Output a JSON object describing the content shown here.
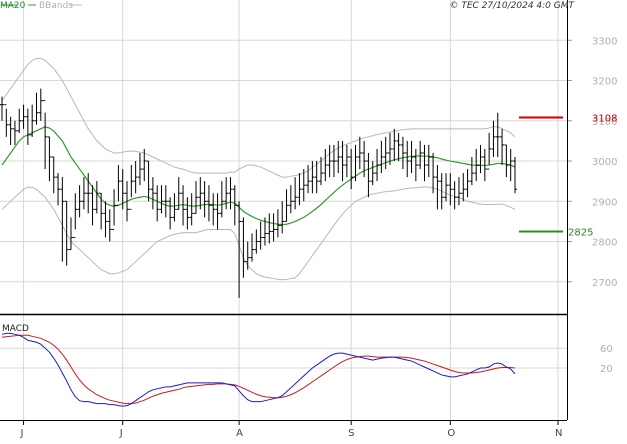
{
  "legend": {
    "ma_label": "MA20",
    "bb_label": "BBands"
  },
  "copyright": "© TEC 27/10/2024 4:0 GMT",
  "macd_label": "MACD",
  "levels": {
    "resistance": {
      "value": 3108,
      "label": "3108",
      "color": "#cc0000"
    },
    "support": {
      "value": 2825,
      "label": "2825",
      "color": "#2a8a2a"
    }
  },
  "colors": {
    "price_bars": "#000000",
    "ma20": "#2e9e2e",
    "bbands": "#b8b8b8",
    "macd_line": "#1a1acc",
    "signal_line": "#cc1a1a",
    "grid": "#d8d8d8"
  },
  "chart_data": [
    {
      "type": "ohlc",
      "panel": "price",
      "y_ticks": [
        2700,
        2800,
        2900,
        3000,
        3100,
        3200,
        3300
      ],
      "y_tick_labels": [
        "2700",
        "2800",
        "2900",
        "3000",
        "3100",
        "3200",
        "3300"
      ],
      "ylim": [
        2620,
        3400
      ],
      "x_month_labels": [
        "J",
        "J",
        "A",
        "S",
        "O",
        "N"
      ],
      "month_start_index": [
        5,
        28,
        55,
        81,
        104,
        137
      ],
      "close": [
        3140,
        3090,
        3080,
        3075,
        3100,
        3110,
        3065,
        3100,
        3120,
        3150,
        3060,
        3010,
        2960,
        2930,
        2900,
        2780,
        2810,
        2880,
        2900,
        2920,
        2920,
        2880,
        2920,
        2870,
        2850,
        2830,
        2890,
        2950,
        2920,
        2880,
        2950,
        2960,
        2980,
        3000,
        2930,
        2920,
        2880,
        2900,
        2900,
        2860,
        2880,
        2920,
        2880,
        2860,
        2870,
        2910,
        2920,
        2900,
        2890,
        2880,
        2870,
        2900,
        2920,
        2930,
        2890,
        2850,
        2750,
        2760,
        2780,
        2800,
        2810,
        2820,
        2825,
        2830,
        2840,
        2850,
        2890,
        2900,
        2910,
        2930,
        2940,
        2950,
        2960,
        2950,
        2970,
        2990,
        3000,
        3000,
        3010,
        2990,
        3010,
        2960,
        3010,
        3020,
        3000,
        2950,
        2970,
        2990,
        3010,
        3020,
        3030,
        3050,
        3040,
        3020,
        3000,
        3010,
        2990,
        3020,
        2990,
        3010,
        2960,
        2950,
        2910,
        2940,
        2930,
        2910,
        2920,
        2930,
        2950,
        2970,
        2990,
        3010,
        2980,
        3030,
        3060,
        3060,
        3040,
        2990,
        3000,
        2930
      ],
      "high": [
        3160,
        3130,
        3110,
        3100,
        3130,
        3140,
        3130,
        3140,
        3170,
        3180,
        3120,
        3060,
        3010,
        2970,
        2960,
        2900,
        2860,
        2920,
        2940,
        2960,
        2970,
        2940,
        2950,
        2920,
        2900,
        2880,
        2930,
        2990,
        2980,
        2950,
        2990,
        3000,
        3020,
        3030,
        3000,
        2960,
        2940,
        2940,
        2940,
        2910,
        2920,
        2960,
        2940,
        2910,
        2920,
        2950,
        2960,
        2950,
        2940,
        2920,
        2920,
        2950,
        2960,
        2960,
        2940,
        2900,
        2860,
        2800,
        2820,
        2830,
        2850,
        2860,
        2870,
        2870,
        2880,
        2900,
        2930,
        2940,
        2960,
        2970,
        2980,
        2990,
        3000,
        3000,
        3010,
        3030,
        3040,
        3040,
        3050,
        3050,
        3040,
        3030,
        3040,
        3060,
        3050,
        3020,
        3000,
        3030,
        3050,
        3060,
        3070,
        3080,
        3070,
        3060,
        3050,
        3050,
        3030,
        3050,
        3040,
        3040,
        3020,
        2990,
        2970,
        2970,
        2970,
        2950,
        2960,
        2970,
        2980,
        3010,
        3030,
        3040,
        3030,
        3070,
        3100,
        3120,
        3080,
        3040,
        3030,
        3010
      ],
      "low": [
        3100,
        3060,
        3040,
        3040,
        3070,
        3080,
        3040,
        3060,
        3090,
        3100,
        2980,
        2950,
        2920,
        2890,
        2750,
        2740,
        2780,
        2830,
        2860,
        2880,
        2870,
        2840,
        2870,
        2830,
        2810,
        2800,
        2840,
        2900,
        2880,
        2850,
        2910,
        2920,
        2940,
        2950,
        2900,
        2880,
        2850,
        2870,
        2860,
        2830,
        2850,
        2880,
        2840,
        2830,
        2840,
        2870,
        2880,
        2860,
        2850,
        2840,
        2830,
        2860,
        2880,
        2880,
        2840,
        2660,
        2710,
        2730,
        2750,
        2770,
        2780,
        2790,
        2795,
        2800,
        2810,
        2820,
        2850,
        2870,
        2880,
        2890,
        2900,
        2920,
        2920,
        2920,
        2940,
        2950,
        2960,
        2960,
        2970,
        2950,
        2960,
        2930,
        2950,
        2980,
        2960,
        2910,
        2940,
        2950,
        2970,
        2980,
        2990,
        3000,
        3000,
        2980,
        2960,
        2970,
        2950,
        2980,
        2950,
        2960,
        2920,
        2880,
        2880,
        2900,
        2890,
        2880,
        2890,
        2900,
        2910,
        2940,
        2950,
        2970,
        2950,
        2990,
        3010,
        3010,
        2990,
        2960,
        2950,
        2920
      ],
      "ma20": [
        2990,
        3005,
        3020,
        3035,
        3050,
        3060,
        3065,
        3070,
        3075,
        3080,
        3085,
        3082,
        3075,
        3062,
        3050,
        3030,
        3010,
        2995,
        2980,
        2965,
        2950,
        2935,
        2920,
        2905,
        2895,
        2890,
        2888,
        2890,
        2895,
        2900,
        2905,
        2908,
        2910,
        2912,
        2910,
        2905,
        2900,
        2895,
        2890,
        2888,
        2888,
        2890,
        2892,
        2890,
        2888,
        2888,
        2890,
        2892,
        2892,
        2892,
        2890,
        2892,
        2895,
        2898,
        2895,
        2885,
        2875,
        2868,
        2862,
        2857,
        2853,
        2850,
        2847,
        2845,
        2843,
        2842,
        2843,
        2846,
        2850,
        2855,
        2860,
        2867,
        2875,
        2883,
        2892,
        2902,
        2912,
        2922,
        2932,
        2940,
        2948,
        2955,
        2962,
        2970,
        2976,
        2980,
        2984,
        2988,
        2992,
        2996,
        3000,
        3003,
        3006,
        3008,
        3010,
        3012,
        3012,
        3013,
        3012,
        3012,
        3010,
        3008,
        3005,
        3002,
        3000,
        2998,
        2996,
        2994,
        2992,
        2990,
        2989,
        2989,
        2989,
        2990,
        2992,
        2994,
        2994,
        2992,
        2990,
        2985
      ],
      "bb_upper": [
        3150,
        3165,
        3180,
        3195,
        3210,
        3225,
        3240,
        3250,
        3255,
        3255,
        3250,
        3240,
        3230,
        3215,
        3200,
        3180,
        3160,
        3140,
        3120,
        3100,
        3080,
        3065,
        3050,
        3040,
        3030,
        3025,
        3020,
        3020,
        3022,
        3024,
        3025,
        3024,
        3022,
        3020,
        3015,
        3010,
        3005,
        3000,
        2995,
        2990,
        2985,
        2982,
        2980,
        2976,
        2972,
        2970,
        2970,
        2970,
        2970,
        2970,
        2970,
        2970,
        2970,
        2972,
        2972,
        2980,
        2985,
        2990,
        2990,
        2988,
        2985,
        2980,
        2975,
        2970,
        2965,
        2960,
        2960,
        2962,
        2964,
        2966,
        2970,
        2976,
        2984,
        2992,
        3000,
        3010,
        3018,
        3026,
        3032,
        3038,
        3042,
        3046,
        3050,
        3054,
        3058,
        3060,
        3063,
        3066,
        3068,
        3070,
        3072,
        3074,
        3076,
        3078,
        3079,
        3080,
        3080,
        3080,
        3080,
        3080,
        3080,
        3080,
        3080,
        3080,
        3080,
        3080,
        3080,
        3080,
        3080,
        3080,
        3080,
        3080,
        3080,
        3082,
        3085,
        3085,
        3080,
        3075,
        3070,
        3060
      ],
      "bb_lower": [
        2880,
        2890,
        2900,
        2910,
        2920,
        2930,
        2935,
        2935,
        2930,
        2920,
        2910,
        2895,
        2880,
        2860,
        2840,
        2820,
        2800,
        2790,
        2780,
        2770,
        2760,
        2750,
        2740,
        2730,
        2725,
        2720,
        2720,
        2722,
        2726,
        2730,
        2740,
        2750,
        2760,
        2770,
        2780,
        2790,
        2800,
        2805,
        2810,
        2815,
        2818,
        2820,
        2822,
        2822,
        2822,
        2822,
        2825,
        2828,
        2830,
        2830,
        2830,
        2830,
        2830,
        2830,
        2820,
        2790,
        2760,
        2740,
        2730,
        2720,
        2715,
        2712,
        2710,
        2708,
        2706,
        2705,
        2706,
        2708,
        2710,
        2720,
        2735,
        2750,
        2765,
        2780,
        2795,
        2810,
        2825,
        2840,
        2855,
        2868,
        2880,
        2890,
        2900,
        2905,
        2910,
        2915,
        2918,
        2920,
        2922,
        2924,
        2925,
        2926,
        2928,
        2930,
        2932,
        2933,
        2934,
        2935,
        2936,
        2935,
        2933,
        2930,
        2925,
        2920,
        2915,
        2912,
        2910,
        2905,
        2900,
        2898,
        2895,
        2893,
        2892,
        2892,
        2892,
        2893,
        2893,
        2890,
        2885,
        2880
      ]
    },
    {
      "type": "line",
      "panel": "macd",
      "title": "MACD",
      "y_ticks": [
        20,
        60
      ],
      "y_tick_labels": [
        "20",
        "60"
      ],
      "ylim": [
        -85,
        125
      ],
      "series": [
        {
          "name": "MACD",
          "values": [
            88,
            90,
            90,
            88,
            86,
            82,
            76,
            74,
            72,
            68,
            60,
            52,
            40,
            26,
            10,
            -6,
            -24,
            -38,
            -46,
            -48,
            -48,
            -50,
            -52,
            -52,
            -52,
            -54,
            -54,
            -56,
            -57,
            -56,
            -52,
            -46,
            -40,
            -34,
            -28,
            -24,
            -22,
            -20,
            -18,
            -18,
            -16,
            -14,
            -12,
            -10,
            -10,
            -10,
            -10,
            -10,
            -10,
            -10,
            -10,
            -10,
            -12,
            -14,
            -16,
            -26,
            -36,
            -44,
            -48,
            -48,
            -48,
            -46,
            -44,
            -42,
            -40,
            -36,
            -28,
            -20,
            -12,
            -4,
            4,
            12,
            20,
            26,
            32,
            38,
            44,
            48,
            50,
            50,
            48,
            46,
            44,
            42,
            40,
            38,
            36,
            38,
            40,
            41,
            42,
            42,
            40,
            38,
            36,
            34,
            30,
            26,
            22,
            18,
            14,
            10,
            6,
            4,
            2,
            2,
            4,
            6,
            8,
            12,
            16,
            20,
            20,
            22,
            28,
            30,
            28,
            22,
            18,
            8
          ]
        },
        {
          "name": "Signal",
          "values": [
            82,
            83,
            84,
            85,
            86,
            86,
            86,
            84,
            82,
            80,
            76,
            72,
            66,
            58,
            48,
            36,
            22,
            8,
            -4,
            -14,
            -22,
            -28,
            -34,
            -38,
            -42,
            -45,
            -47,
            -49,
            -51,
            -52,
            -52,
            -51,
            -48,
            -45,
            -41,
            -37,
            -34,
            -31,
            -29,
            -27,
            -25,
            -23,
            -20,
            -18,
            -17,
            -16,
            -15,
            -14,
            -13,
            -13,
            -12,
            -12,
            -12,
            -13,
            -14,
            -17,
            -21,
            -25,
            -29,
            -33,
            -36,
            -38,
            -39,
            -40,
            -40,
            -39,
            -37,
            -34,
            -30,
            -25,
            -20,
            -14,
            -8,
            -2,
            4,
            10,
            16,
            22,
            28,
            33,
            37,
            40,
            42,
            43,
            44,
            44,
            43,
            42,
            42,
            42,
            42,
            42,
            42,
            42,
            41,
            40,
            38,
            36,
            34,
            31,
            28,
            25,
            22,
            19,
            16,
            13,
            11,
            10,
            10,
            10,
            11,
            12,
            14,
            16,
            18,
            20,
            21,
            21,
            21,
            20
          ]
        }
      ]
    }
  ]
}
